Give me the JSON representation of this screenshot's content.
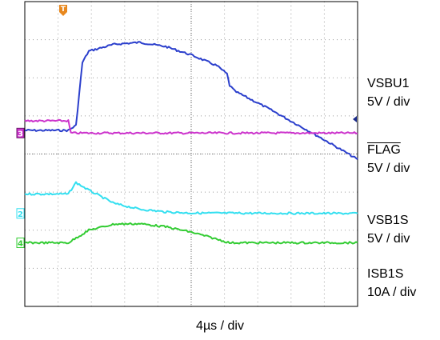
{
  "chart_data": {
    "type": "line",
    "display": "oscilloscope capture",
    "grid": true,
    "time_scale": "4µs / div",
    "series": [
      {
        "name": "VSBU1",
        "scale": "5V / div",
        "color": "#2b3fcc",
        "marker_label": "",
        "points": [
          [
            -1.5,
            4.62
          ],
          [
            0.2,
            4.62
          ],
          [
            0.5,
            4.75
          ],
          [
            0.75,
            6.4
          ],
          [
            1.0,
            6.7
          ],
          [
            2.0,
            6.88
          ],
          [
            3.0,
            6.93
          ],
          [
            4.0,
            6.82
          ],
          [
            5.0,
            6.6
          ],
          [
            6.0,
            6.32
          ],
          [
            6.4,
            6.1
          ],
          [
            6.5,
            5.8
          ],
          [
            6.7,
            5.65
          ],
          [
            8.0,
            5.2
          ],
          [
            10.0,
            4.45
          ],
          [
            11.5,
            3.86
          ]
        ]
      },
      {
        "name": "FLAG",
        "scale": "5V / div",
        "overline": true,
        "color": "#cc33cc",
        "marker_label": "3",
        "points": [
          [
            -1.5,
            4.87
          ],
          [
            0.2,
            4.87
          ],
          [
            0.3,
            4.55
          ],
          [
            11.5,
            4.55
          ]
        ]
      },
      {
        "name": "VSB1S",
        "scale": "5V / div",
        "color": "#33dff0",
        "marker_label": "2",
        "points": [
          [
            -1.5,
            2.95
          ],
          [
            0.2,
            2.95
          ],
          [
            0.5,
            3.25
          ],
          [
            1.0,
            3.05
          ],
          [
            2.0,
            2.7
          ],
          [
            3.0,
            2.55
          ],
          [
            4.0,
            2.48
          ],
          [
            5.0,
            2.45
          ],
          [
            11.5,
            2.44
          ]
        ]
      },
      {
        "name": "ISB1S",
        "scale": "10A / div",
        "color": "#33cc33",
        "marker_label": "4",
        "points": [
          [
            -1.5,
            1.67
          ],
          [
            0.2,
            1.67
          ],
          [
            1.0,
            2.0
          ],
          [
            2.0,
            2.16
          ],
          [
            3.0,
            2.17
          ],
          [
            4.0,
            2.09
          ],
          [
            5.0,
            1.95
          ],
          [
            5.7,
            1.82
          ],
          [
            6.5,
            1.67
          ],
          [
            11.5,
            1.67
          ]
        ]
      }
    ]
  },
  "colors": {
    "grid_border": "#000000",
    "grid_line": "#999999",
    "trigger_marker": "#e8881e",
    "level_arrow": "#1a2a8a"
  },
  "trigger_label": "T"
}
